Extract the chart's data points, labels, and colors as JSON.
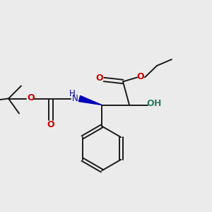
{
  "background_color": "#ebebeb",
  "bond_color": "#1a1a1a",
  "oxygen_color": "#cc0000",
  "nitrogen_color": "#0000bb",
  "hydroxyl_color": "#2e7d5e",
  "figsize": [
    3.0,
    3.0
  ],
  "dpi": 100,
  "xlim": [
    0,
    10
  ],
  "ylim": [
    0,
    10
  ]
}
